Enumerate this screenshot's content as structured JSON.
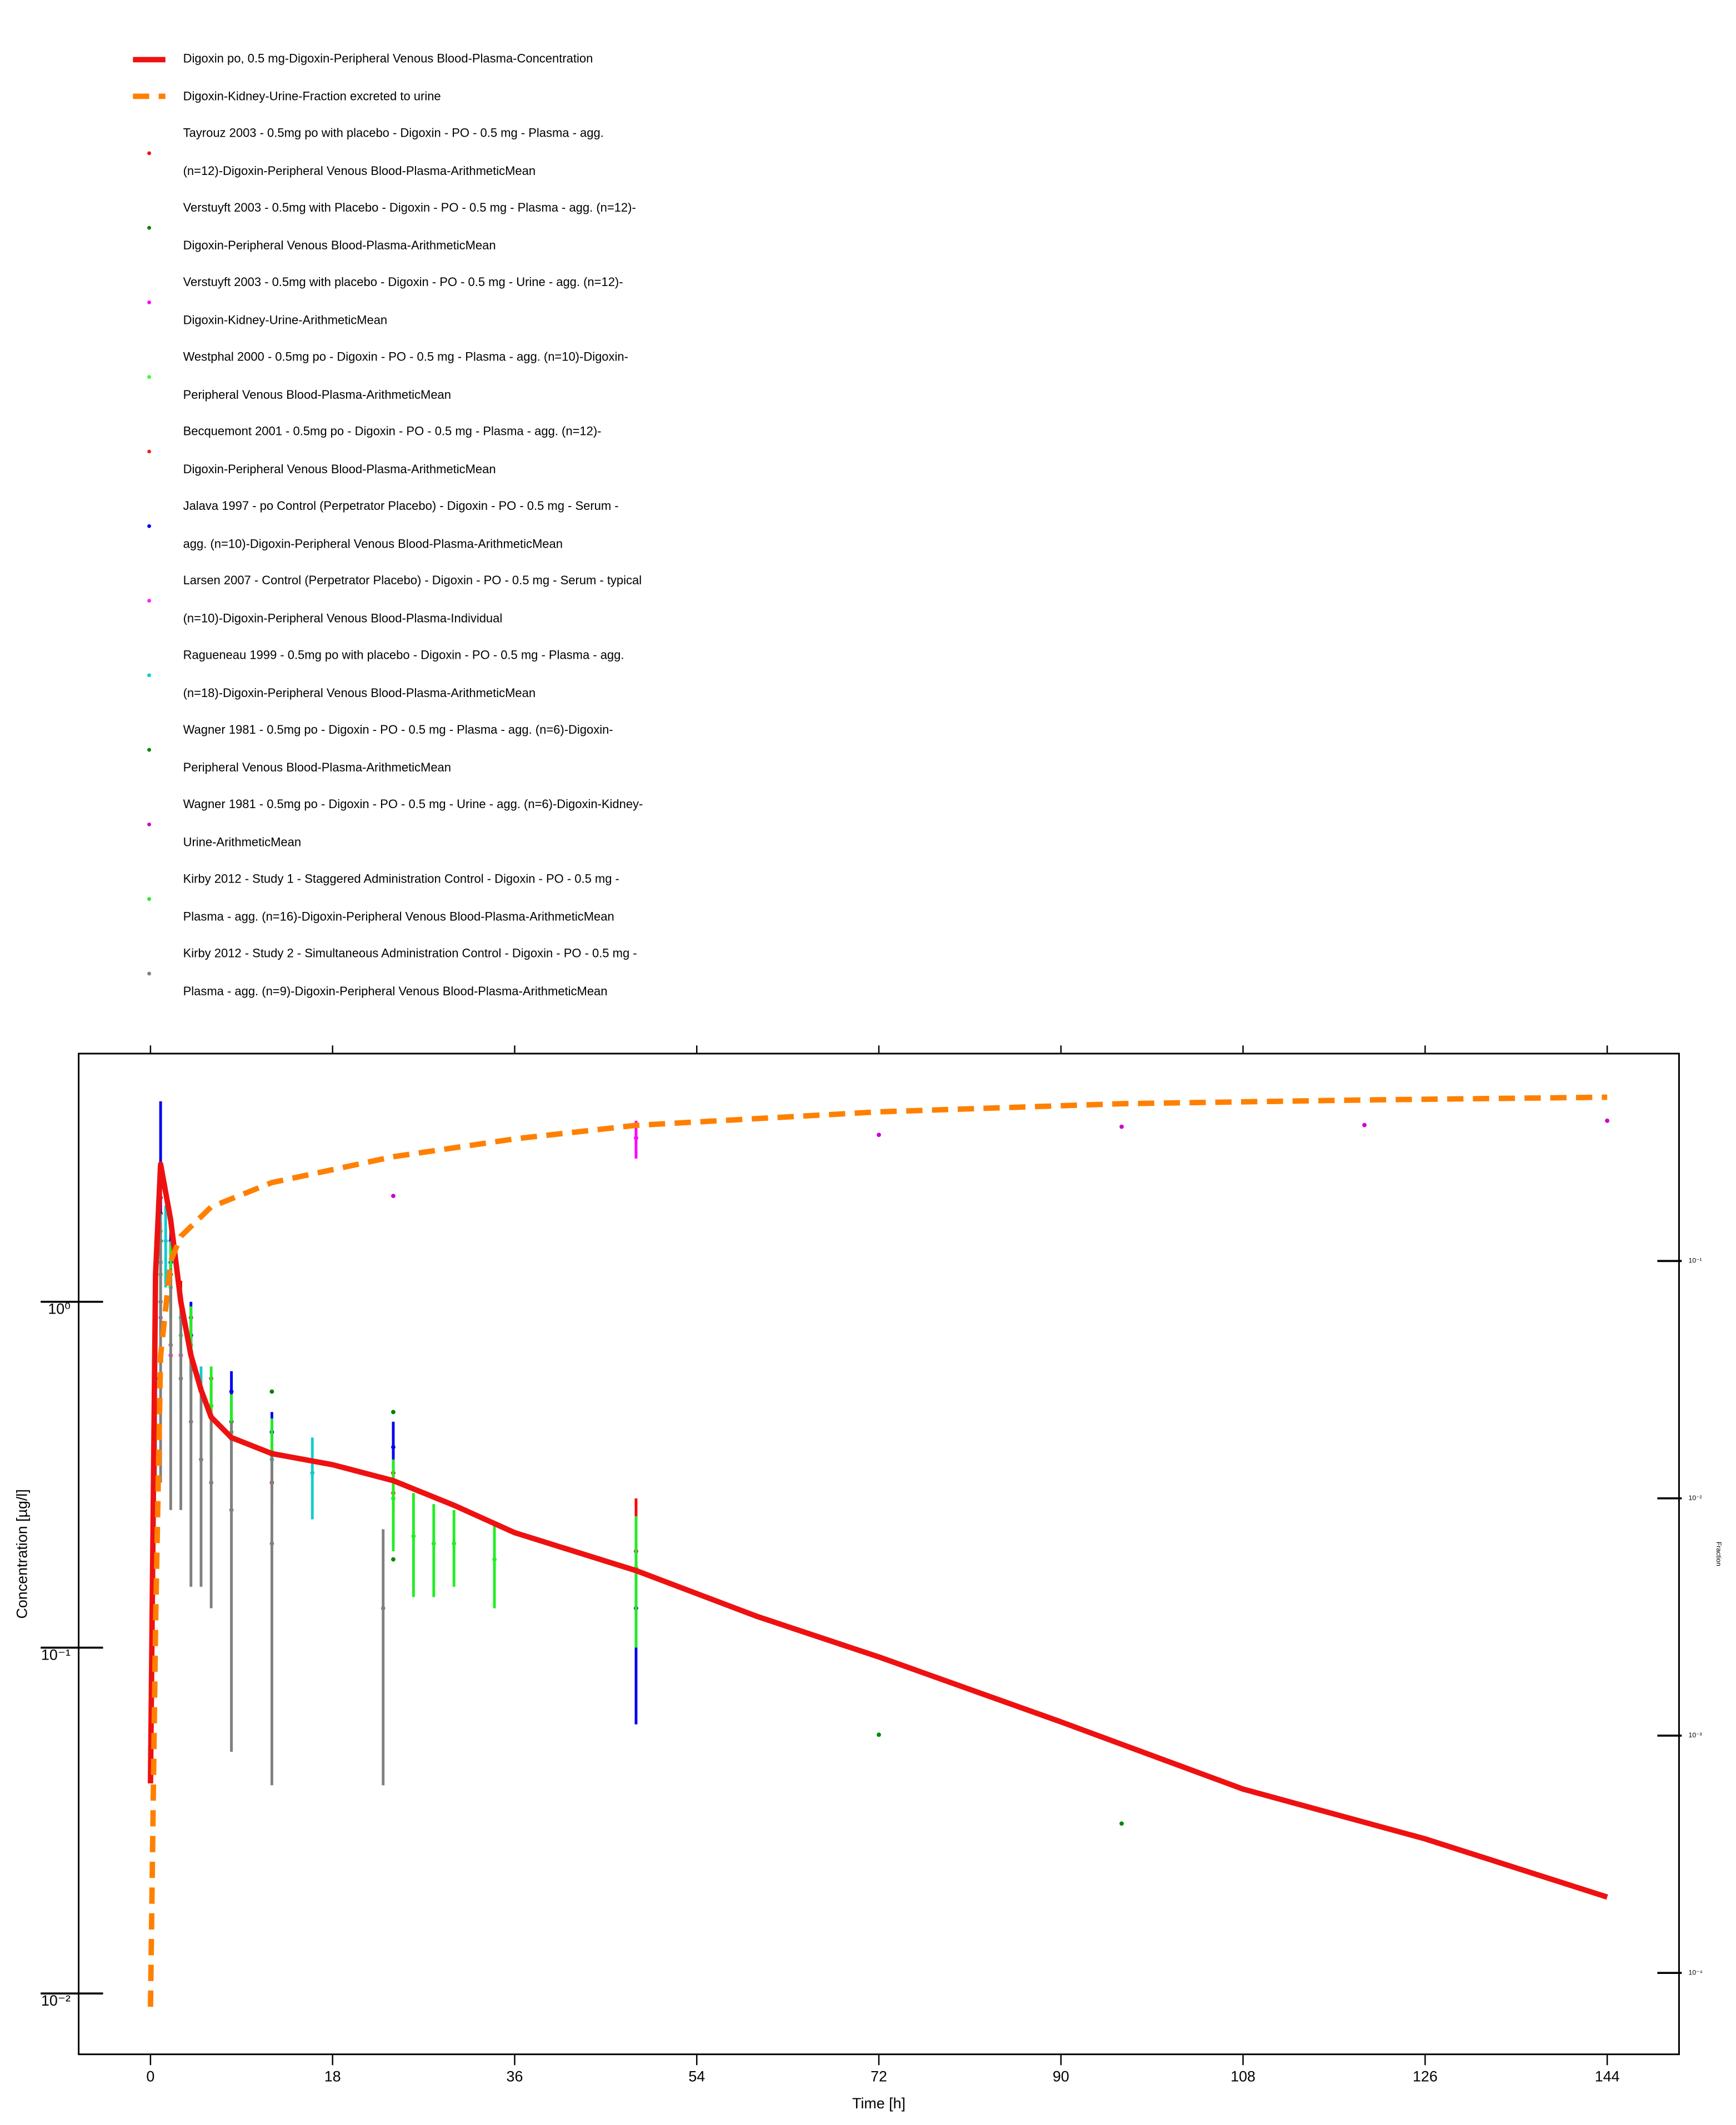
{
  "chart_data": {
    "type": "line",
    "xlabel": "Time [h]",
    "ylabel": "Concentration [µg/l]",
    "y2label": "Fraction",
    "xlim": [
      -7.1,
      151.1
    ],
    "ylim": [
      0.00667,
      5.22
    ],
    "y2lim": [
      4.54e-05,
      0.748
    ],
    "yscale": "log",
    "y2scale": "log",
    "grid": false,
    "legend": "top",
    "xticks": [
      0,
      18,
      36,
      54,
      72,
      90,
      108,
      126,
      144
    ],
    "yticks": [
      {
        "value": 0.01,
        "label": "10⁻²"
      },
      {
        "value": 0.1,
        "label": "10⁻¹"
      },
      {
        "value": 1,
        "label": "10⁰"
      }
    ],
    "y2ticks": [
      {
        "value": 0.0001,
        "label": "10⁻⁴"
      },
      {
        "value": 0.001,
        "label": "10⁻³"
      },
      {
        "value": 0.01,
        "label": "10⁻²"
      },
      {
        "value": 0.1,
        "label": "10⁻¹"
      }
    ],
    "series": [
      {
        "name": "Digoxin po, 0.5 mg-Digoxin-Peripheral Venous Blood-Plasma-Concentration",
        "style": "solid",
        "color": "#ee1111",
        "x": [
          0,
          0.5,
          1,
          2,
          3,
          4,
          5,
          6,
          8,
          12,
          18,
          24,
          30,
          36,
          48,
          60,
          72,
          90,
          108,
          126,
          144
        ],
        "values": [
          0.0405,
          1.2,
          2.5,
          1.72,
          1.0,
          0.7,
          0.556,
          0.464,
          0.405,
          0.364,
          0.338,
          0.304,
          0.258,
          0.215,
          0.167,
          0.123,
          0.094,
          0.061,
          0.039,
          0.028,
          0.019
        ]
      },
      {
        "name": "Digoxin-Kidney-Urine-Fraction excreted to urine",
        "style": "dashed",
        "color": "#ff8000",
        "axis": "y2",
        "x": [
          0,
          0.5,
          1,
          2,
          3,
          6,
          12,
          24,
          36,
          48,
          72,
          96,
          120,
          144
        ],
        "values": [
          7.2e-05,
          0.00287,
          0.0398,
          0.1,
          0.127,
          0.169,
          0.214,
          0.275,
          0.327,
          0.373,
          0.425,
          0.46,
          0.477,
          0.49
        ]
      },
      {
        "name": "Tayrouz 2003 - 0.5mg po with placebo - Digoxin - PO - 0.5 mg - Plasma - agg. (n=12)-Digoxin-Peripheral Venous Blood-Plasma-ArithmeticMean",
        "style": "markers",
        "color": "#ff0000",
        "x": [
          1,
          2,
          3,
          4,
          6,
          8,
          12,
          24,
          48
        ],
        "values": [
          2.2,
          1.3,
          1.0,
          0.7,
          0.5,
          0.42,
          0.36,
          0.32,
          0.19
        ],
        "errors": [
          0.4,
          0.3,
          0.15,
          0.1,
          0.08,
          0.08,
          0.07,
          0.07,
          0.08
        ]
      },
      {
        "name": "Verstuyft 2003 - 0.5mg with Placebo - Digoxin - PO - 0.5 mg - Plasma - agg. (n=12)-Digoxin-Peripheral Venous Blood-Plasma-ArithmeticMean",
        "style": "markers",
        "color": "#008000",
        "x": [
          1,
          2,
          4,
          8,
          12,
          24,
          48
        ],
        "values": [
          1.8,
          1.2,
          0.7,
          0.45,
          0.55,
          0.48,
          0.17
        ]
      },
      {
        "name": "Verstuyft 2003 - 0.5mg with placebo - Digoxin - PO - 0.5 mg - Urine - agg. (n=12)-Digoxin-Kidney-Urine-ArithmeticMean",
        "style": "markers",
        "color": "#ff00ff",
        "axis": "y2",
        "x": [
          48
        ],
        "values": [
          0.33
        ],
        "errors": [
          0.06
        ]
      },
      {
        "name": "Westphal 2000 - 0.5mg po - Digoxin - PO - 0.5 mg - Plasma - agg. (n=10)-Digoxin-Peripheral Venous Blood-Plasma-ArithmeticMean",
        "style": "markers",
        "color": "#33ff33",
        "x": [
          0.5,
          1,
          2,
          3,
          4,
          6,
          8,
          12
        ],
        "values": [
          0.8,
          1.6,
          1.3,
          1.0,
          0.75,
          0.5,
          0.45,
          0.37
        ]
      },
      {
        "name": "Becquemont 2001 - 0.5mg po - Digoxin - PO - 0.5 mg - Plasma - agg. (n=12)-Digoxin-Peripheral Venous Blood-Plasma-ArithmeticMean",
        "style": "markers",
        "color": "#ee2222",
        "x": [
          0.5,
          1,
          2,
          4,
          6,
          12,
          24
        ],
        "values": [
          0.9,
          2.0,
          1.5,
          0.9,
          0.6,
          0.3,
          0.28
        ]
      },
      {
        "name": "Jalava 1997 - po Control (Perpetrator Placebo) - Digoxin - PO - 0.5 mg - Serum - agg. (n=10)-Digoxin-Peripheral Venous Blood-Plasma-ArithmeticMean",
        "style": "markers",
        "color": "#0000ee",
        "x": [
          1,
          2,
          4,
          8,
          12,
          24,
          48
        ],
        "values": [
          2.3,
          1.3,
          0.8,
          0.55,
          0.42,
          0.38,
          0.13
        ],
        "errors": [
          1.5,
          0.4,
          0.2,
          0.08,
          0.06,
          0.07,
          0.07
        ]
      },
      {
        "name": "Larsen 2007 - Control (Perpetrator Placebo) - Digoxin - PO - 0.5 mg - Serum - typical (n=10)-Digoxin-Peripheral Venous Blood-Plasma-Individual",
        "style": "markers",
        "color": "#ff22ff",
        "x": [
          1,
          2,
          3
        ],
        "values": [
          0.9,
          0.7,
          0.7
        ]
      },
      {
        "name": "Rague­neau 1999 - 0.5mg po with placebo - Digoxin - PO - 0.5 mg - Plasma - agg. (n=18)-Digoxin-Peripheral Venous Blood-Plasma-ArithmeticMean",
        "style": "markers",
        "color": "#11cccc",
        "x": [
          0.5,
          1,
          1.5,
          2,
          3,
          5,
          8,
          12,
          16
        ],
        "values": [
          0.6,
          1.3,
          1.5,
          1.2,
          0.9,
          0.55,
          0.4,
          0.35,
          0.32
        ],
        "errors": [
          0.3,
          0.5,
          0.4,
          0.3,
          0.2,
          0.1,
          0.08,
          0.06,
          0.085
        ]
      },
      {
        "name": "Wagner 1981 - 0.5mg po - Digoxin - PO - 0.5 mg - Plasma - agg. (n=6)-Digoxin-Peripheral Venous Blood-Plasma-ArithmeticMean",
        "style": "markers",
        "color": "#008800",
        "x": [
          0.5,
          1,
          2,
          3,
          4,
          6,
          8,
          24,
          72,
          96
        ],
        "values": [
          0.6,
          1.5,
          1.2,
          1.0,
          0.7,
          0.5,
          0.45,
          0.18,
          0.056,
          0.031
        ]
      },
      {
        "name": "Wagner 1981 - 0.5mg po - Digoxin - PO - 0.5 mg - Urine - agg. (n=6)-Digoxin-Kidney-Urine-ArithmeticMean",
        "style": "markers",
        "color": "#cc00cc",
        "axis": "y2",
        "x": [
          24,
          72,
          96,
          120,
          144
        ],
        "values": [
          0.188,
          0.34,
          0.368,
          0.374,
          0.39
        ]
      },
      {
        "name": "Kirby 2012 - Study 1 - Staggered Administration Control - Digoxin - PO - 0.5 mg - Plasma - agg. (n=16)-Digoxin-Peripheral Venous Blood-Plasma-ArithmeticMean",
        "style": "markers",
        "color": "#22ee22",
        "x": [
          1,
          2,
          3,
          4,
          6,
          8,
          12,
          24,
          26,
          28,
          30,
          34,
          48
        ],
        "values": [
          1.2,
          1.1,
          0.8,
          0.72,
          0.5,
          0.42,
          0.36,
          0.27,
          0.21,
          0.2,
          0.2,
          0.18,
          0.17
        ],
        "errors": [
          0.4,
          0.35,
          0.3,
          0.25,
          0.15,
          0.12,
          0.1,
          0.08,
          0.07,
          0.06,
          0.05,
          0.05,
          0.07
        ]
      },
      {
        "name": "Kirby 2012 - Study 2 - Simultaneous Administration Control - Digoxin - PO - 0.5 mg - Plasma - agg. (n=9)-Digoxin-Peripheral Venous Blood-Plasma-ArithmeticMean",
        "style": "markers",
        "color": "#808080",
        "x": [
          0.5,
          1,
          2,
          3,
          4,
          5,
          6,
          8,
          12,
          23
        ],
        "values": [
          0.9,
          1.0,
          0.75,
          0.6,
          0.45,
          0.35,
          0.3,
          0.25,
          0.2,
          0.13
        ],
        "errors": [
          0.6,
          0.7,
          0.5,
          0.35,
          0.3,
          0.2,
          0.17,
          0.2,
          0.16,
          0.09
        ]
      }
    ]
  }
}
